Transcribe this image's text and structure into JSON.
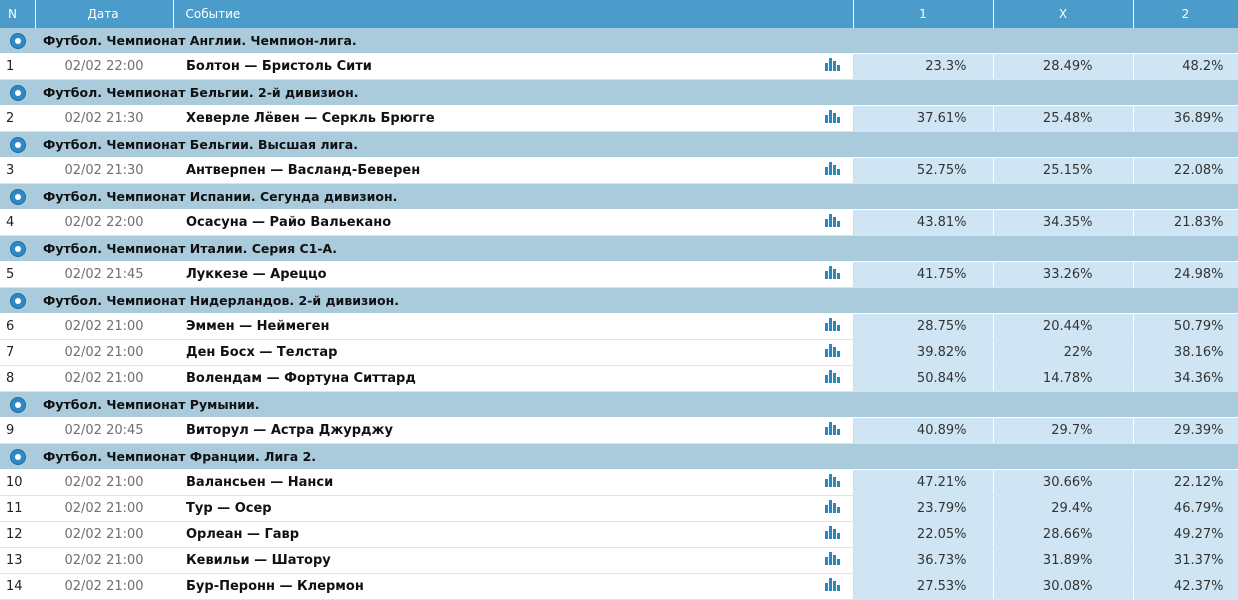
{
  "header": {
    "n": "N",
    "date": "Дата",
    "event": "Событие",
    "p1": "1",
    "px": "X",
    "p2": "2"
  },
  "colors": {
    "header_bg": "#4c9ccb",
    "league_bg": "#a9cbdc",
    "prob_bg": "#cfe5f3",
    "icon_blue": "#2a86c0"
  },
  "icons": {
    "league": "soccer-ball-icon",
    "stats": "bar-chart-icon"
  },
  "leagues": [
    {
      "title": "Футбол. Чемпионат Англии. Чемпион-лига.",
      "matches": [
        {
          "n": "1",
          "date": "02/02 22:00",
          "event": "Болтон — Бристоль Сити",
          "p1": "23.3%",
          "px": "28.49%",
          "p2": "48.2%"
        }
      ]
    },
    {
      "title": "Футбол. Чемпионат Бельгии. 2-й дивизион.",
      "matches": [
        {
          "n": "2",
          "date": "02/02 21:30",
          "event": "Хеверле Лёвен — Серкль Брюгге",
          "p1": "37.61%",
          "px": "25.48%",
          "p2": "36.89%"
        }
      ]
    },
    {
      "title": "Футбол. Чемпионат Бельгии. Высшая лига.",
      "matches": [
        {
          "n": "3",
          "date": "02/02 21:30",
          "event": "Антверпен — Васланд-Беверен",
          "p1": "52.75%",
          "px": "25.15%",
          "p2": "22.08%"
        }
      ]
    },
    {
      "title": "Футбол. Чемпионат Испании. Сегунда дивизион.",
      "matches": [
        {
          "n": "4",
          "date": "02/02 22:00",
          "event": "Осасуна — Райо Вальекано",
          "p1": "43.81%",
          "px": "34.35%",
          "p2": "21.83%"
        }
      ]
    },
    {
      "title": "Футбол. Чемпионат Италии. Серия С1-А.",
      "matches": [
        {
          "n": "5",
          "date": "02/02 21:45",
          "event": "Луккезе — Ареццо",
          "p1": "41.75%",
          "px": "33.26%",
          "p2": "24.98%"
        }
      ]
    },
    {
      "title": "Футбол. Чемпионат Нидерландов. 2-й дивизион.",
      "matches": [
        {
          "n": "6",
          "date": "02/02 21:00",
          "event": "Эммен — Неймеген",
          "p1": "28.75%",
          "px": "20.44%",
          "p2": "50.79%"
        },
        {
          "n": "7",
          "date": "02/02 21:00",
          "event": "Ден Босх — Телстар",
          "p1": "39.82%",
          "px": "22%",
          "p2": "38.16%"
        },
        {
          "n": "8",
          "date": "02/02 21:00",
          "event": "Волендам — Фортуна Ситтард",
          "p1": "50.84%",
          "px": "14.78%",
          "p2": "34.36%"
        }
      ]
    },
    {
      "title": "Футбол. Чемпионат Румынии.",
      "matches": [
        {
          "n": "9",
          "date": "02/02 20:45",
          "event": "Виторул — Астра Джурджу",
          "p1": "40.89%",
          "px": "29.7%",
          "p2": "29.39%"
        }
      ]
    },
    {
      "title": "Футбол. Чемпионат Франции. Лига 2.",
      "matches": [
        {
          "n": "10",
          "date": "02/02 21:00",
          "event": "Валансьен — Нанси",
          "p1": "47.21%",
          "px": "30.66%",
          "p2": "22.12%"
        },
        {
          "n": "11",
          "date": "02/02 21:00",
          "event": "Тур — Осер",
          "p1": "23.79%",
          "px": "29.4%",
          "p2": "46.79%"
        },
        {
          "n": "12",
          "date": "02/02 21:00",
          "event": "Орлеан — Гавр",
          "p1": "22.05%",
          "px": "28.66%",
          "p2": "49.27%"
        },
        {
          "n": "13",
          "date": "02/02 21:00",
          "event": "Кевильи — Шатору",
          "p1": "36.73%",
          "px": "31.89%",
          "p2": "31.37%"
        },
        {
          "n": "14",
          "date": "02/02 21:00",
          "event": "Бур-Перонн — Клермон",
          "p1": "27.53%",
          "px": "30.08%",
          "p2": "42.37%"
        }
      ]
    }
  ]
}
